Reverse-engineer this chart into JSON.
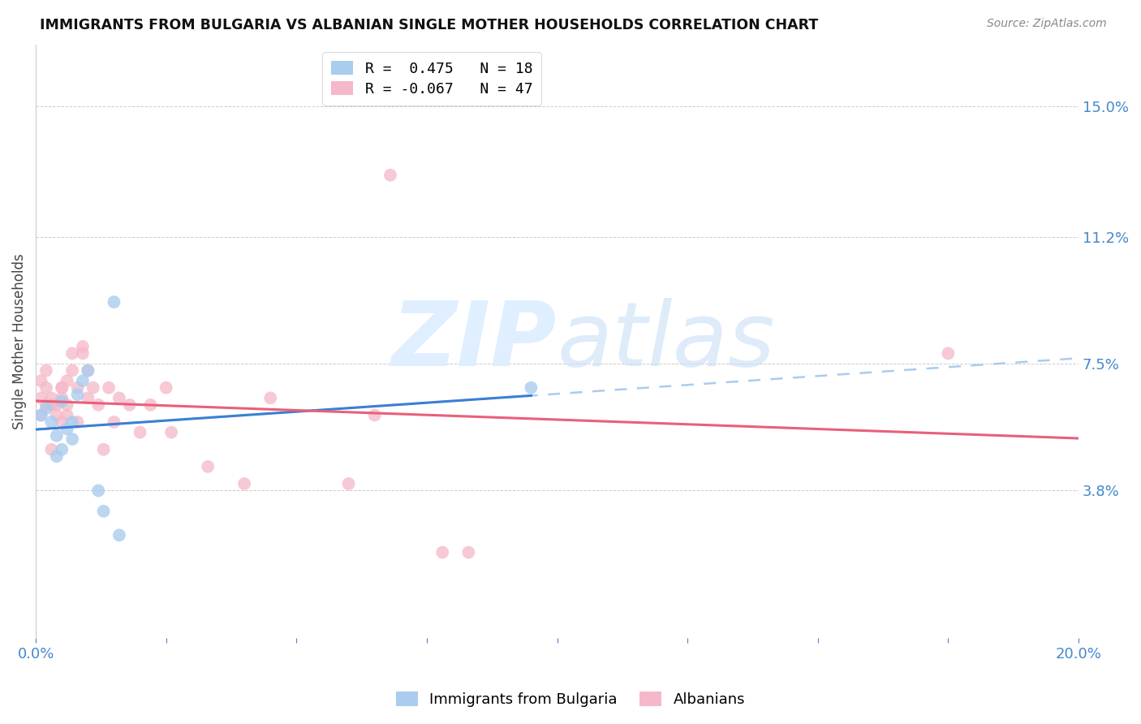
{
  "title": "IMMIGRANTS FROM BULGARIA VS ALBANIAN SINGLE MOTHER HOUSEHOLDS CORRELATION CHART",
  "source": "Source: ZipAtlas.com",
  "ylabel": "Single Mother Households",
  "ytick_labels": [
    "15.0%",
    "11.2%",
    "7.5%",
    "3.8%"
  ],
  "ytick_values": [
    0.15,
    0.112,
    0.075,
    0.038
  ],
  "xlim": [
    0.0,
    0.2
  ],
  "ylim": [
    -0.005,
    0.168
  ],
  "bulgaria_color": "#aaccee",
  "albania_color": "#f5b8c8",
  "trend_bulgaria_solid_color": "#3a7fd5",
  "trend_albania_solid_color": "#e8607a",
  "dashed_line_color": "#aaccee",
  "watermark_color": "#ddeeff",
  "bg_color": "#ffffff",
  "grid_color": "#cccccc",
  "bulgaria_x": [
    0.001,
    0.002,
    0.003,
    0.004,
    0.004,
    0.005,
    0.005,
    0.006,
    0.007,
    0.007,
    0.008,
    0.009,
    0.01,
    0.012,
    0.013,
    0.015,
    0.016,
    0.095
  ],
  "bulgaria_y": [
    0.06,
    0.062,
    0.058,
    0.054,
    0.048,
    0.05,
    0.064,
    0.056,
    0.053,
    0.058,
    0.066,
    0.07,
    0.073,
    0.038,
    0.032,
    0.093,
    0.025,
    0.068
  ],
  "albania_x": [
    0.001,
    0.001,
    0.001,
    0.002,
    0.002,
    0.002,
    0.003,
    0.003,
    0.003,
    0.003,
    0.004,
    0.004,
    0.005,
    0.005,
    0.005,
    0.005,
    0.006,
    0.006,
    0.006,
    0.007,
    0.007,
    0.008,
    0.008,
    0.009,
    0.009,
    0.01,
    0.01,
    0.011,
    0.012,
    0.013,
    0.014,
    0.015,
    0.016,
    0.018,
    0.02,
    0.022,
    0.025,
    0.026,
    0.033,
    0.04,
    0.045,
    0.06,
    0.065,
    0.068,
    0.078,
    0.083,
    0.175
  ],
  "albania_y": [
    0.065,
    0.07,
    0.06,
    0.063,
    0.068,
    0.073,
    0.063,
    0.065,
    0.063,
    0.05,
    0.06,
    0.063,
    0.068,
    0.068,
    0.065,
    0.058,
    0.063,
    0.06,
    0.07,
    0.073,
    0.078,
    0.058,
    0.068,
    0.078,
    0.08,
    0.073,
    0.065,
    0.068,
    0.063,
    0.05,
    0.068,
    0.058,
    0.065,
    0.063,
    0.055,
    0.063,
    0.068,
    0.055,
    0.045,
    0.04,
    0.065,
    0.04,
    0.06,
    0.13,
    0.02,
    0.02,
    0.078
  ],
  "point_size": 130,
  "legend_entries": [
    {
      "label": "R =  0.475   N = 18",
      "color": "#aaccee"
    },
    {
      "label": "R = -0.067   N = 47",
      "color": "#f5b8c8"
    }
  ],
  "bottom_legend": [
    {
      "label": "Immigrants from Bulgaria",
      "color": "#aaccee"
    },
    {
      "label": "Albanians",
      "color": "#f5b8c8"
    }
  ]
}
